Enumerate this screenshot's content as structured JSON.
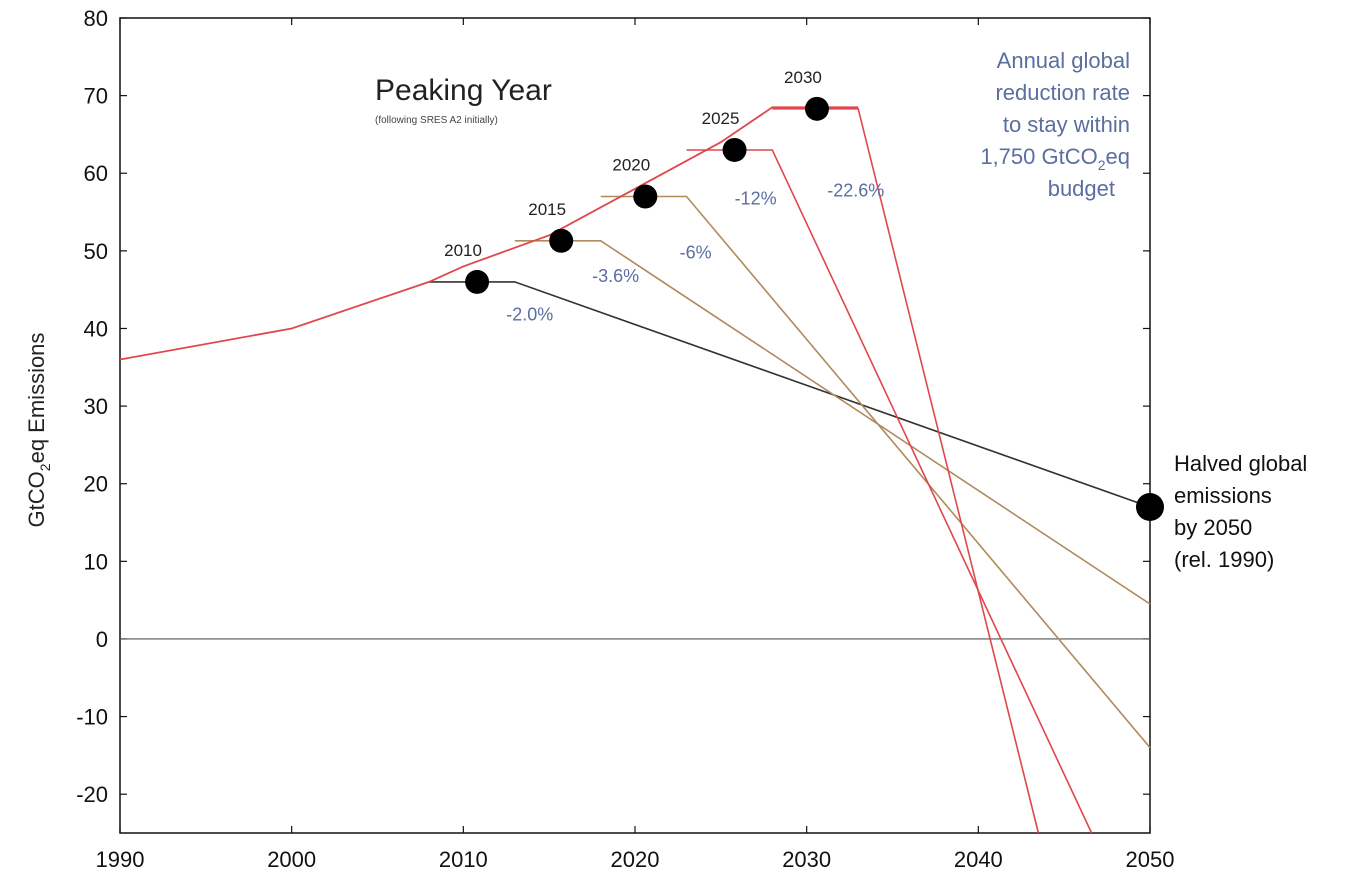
{
  "chart_data": {
    "type": "line",
    "xlim": [
      1990,
      2050
    ],
    "ylim": [
      -25,
      80
    ],
    "x_ticks": [
      "1990",
      "2000",
      "2010",
      "2020",
      "2030",
      "2040",
      "2050"
    ],
    "y_ticks": [
      "80",
      "70",
      "60",
      "50",
      "40",
      "30",
      "20",
      "10",
      "0",
      "-10",
      "-20"
    ],
    "ylabel_parts": [
      "GtCO",
      "2",
      "eq Emissions"
    ],
    "title": "Peaking Year",
    "subtitle": "(following SRES A2 initially)",
    "annotation_lines": [
      "Annual global",
      "reduction rate",
      "to stay within"
    ],
    "annotation_budget_parts": [
      "1,750 GtCO",
      "2",
      "eq"
    ],
    "annotation_last": "budget",
    "halved_lines": [
      "Halved global",
      "emissions",
      "by 2050",
      "(rel. 1990)"
    ],
    "baseline": {
      "x": [
        1990,
        2000,
        2008,
        2010,
        2015,
        2020,
        2025,
        2028,
        2033
      ],
      "y": [
        36,
        40,
        46,
        48,
        52,
        58,
        64,
        68.5,
        68.5
      ],
      "color": "#e0474c"
    },
    "scenarios": [
      {
        "peak_label": "2010",
        "rate_label": "-2.0%",
        "marker": [
          2010.8,
          46
        ],
        "x": [
          2008,
          2013,
          2050
        ],
        "y": [
          46,
          46,
          17
        ],
        "color": "#333333"
      },
      {
        "peak_label": "2015",
        "rate_label": "-3.6%",
        "marker": [
          2015.7,
          51.3
        ],
        "x": [
          2013,
          2018,
          2050
        ],
        "y": [
          51.3,
          51.3,
          4.5
        ],
        "color": "#b08a5a"
      },
      {
        "peak_label": "2020",
        "rate_label": "-6%",
        "marker": [
          2020.6,
          57
        ],
        "x": [
          2018,
          2023,
          2050
        ],
        "y": [
          57,
          57,
          -14
        ],
        "color": "#b08a5a"
      },
      {
        "peak_label": "2025",
        "rate_label": "-12%",
        "marker": [
          2025.8,
          63
        ],
        "x": [
          2023,
          2028,
          2046.6
        ],
        "y": [
          63,
          63,
          -25
        ],
        "color": "#e0474c"
      },
      {
        "peak_label": "2030",
        "rate_label": "-22.6%",
        "marker": [
          2030.6,
          68.3
        ],
        "x": [
          2028,
          2033,
          2043.5
        ],
        "y": [
          68.3,
          68.3,
          -25
        ],
        "color": "#e0474c"
      }
    ],
    "end_marker": [
      2050,
      17
    ],
    "zero_line": true,
    "grid": false
  }
}
